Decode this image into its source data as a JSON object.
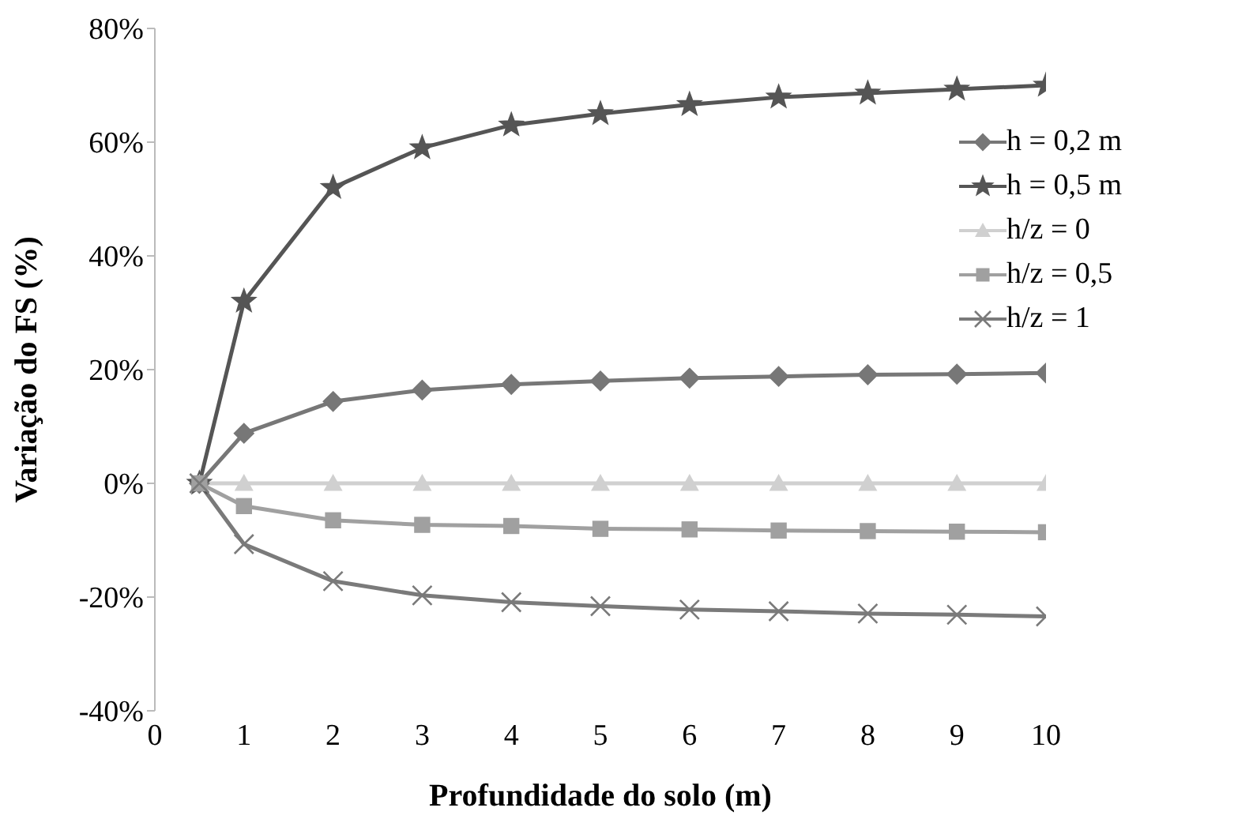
{
  "chart_data": {
    "type": "line",
    "xlabel": "Profundidade do solo (m)",
    "ylabel": "Variação do FS (%)",
    "x": [
      0.5,
      1,
      2,
      3,
      4,
      5,
      6,
      7,
      8,
      9,
      10
    ],
    "xlim": [
      0,
      10
    ],
    "xticks": [
      0,
      1,
      2,
      3,
      4,
      5,
      6,
      7,
      8,
      9,
      10
    ],
    "ylim": [
      -40,
      80
    ],
    "yticks": [
      {
        "value": -40,
        "label": "-40%"
      },
      {
        "value": -20,
        "label": "-20%"
      },
      {
        "value": 0,
        "label": "0%"
      },
      {
        "value": 20,
        "label": "20%"
      },
      {
        "value": 40,
        "label": "40%"
      },
      {
        "value": 60,
        "label": "60%"
      },
      {
        "value": 80,
        "label": "80%"
      }
    ],
    "grid": false,
    "legend": "right",
    "line_style": "solid",
    "series": [
      {
        "name": "h = 0,2 m",
        "color": "#777777",
        "marker": "diamond",
        "values": [
          0,
          8.8,
          14.4,
          16.4,
          17.4,
          18.0,
          18.5,
          18.8,
          19.1,
          19.2,
          19.4
        ]
      },
      {
        "name": "h = 0,5 m",
        "color": "#555555",
        "marker": "star",
        "values": [
          0,
          32,
          52,
          59,
          63,
          65,
          66.6,
          67.9,
          68.6,
          69.3,
          70
        ]
      },
      {
        "name": "h/z = 0",
        "color": "#d0d0d0",
        "marker": "triangle",
        "values": [
          0,
          0,
          0,
          0,
          0,
          0,
          0,
          0,
          0,
          0,
          0
        ]
      },
      {
        "name": "h/z = 0,5",
        "color": "#a0a0a0",
        "marker": "square",
        "values": [
          0,
          -4.0,
          -6.5,
          -7.3,
          -7.5,
          -8.0,
          -8.1,
          -8.3,
          -8.4,
          -8.5,
          -8.6
        ]
      },
      {
        "name": "h/z = 1",
        "color": "#7a7a7a",
        "marker": "cross",
        "values": [
          0,
          -10.7,
          -17.2,
          -19.7,
          -20.9,
          -21.6,
          -22.2,
          -22.5,
          -22.9,
          -23.1,
          -23.4
        ]
      }
    ]
  }
}
